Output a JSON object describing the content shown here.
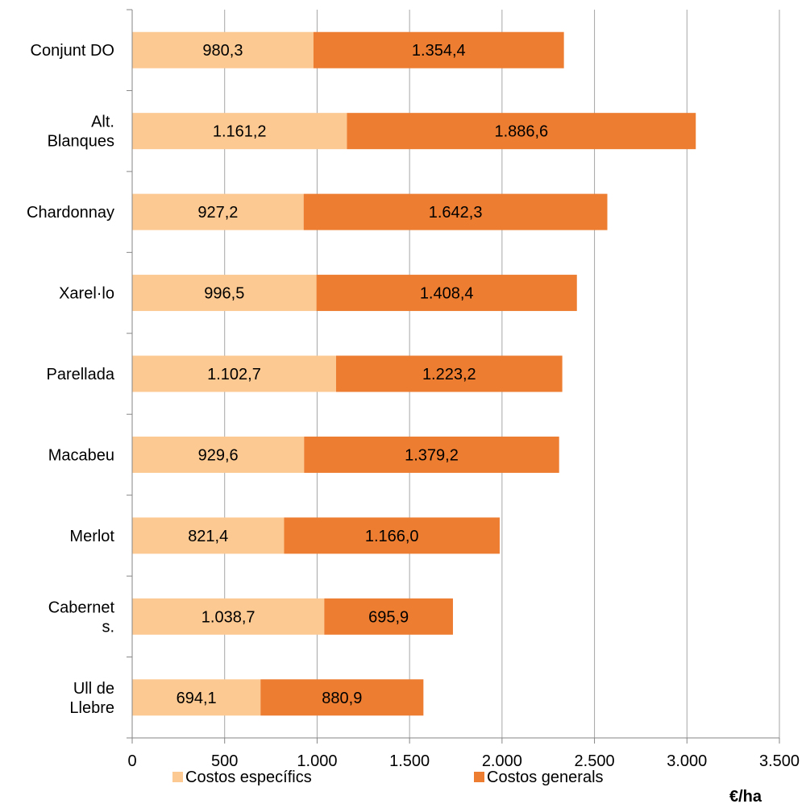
{
  "chart_data": {
    "type": "bar",
    "orientation": "horizontal",
    "stacked": true,
    "categories": [
      [
        "Conjunt DO"
      ],
      [
        "Alt.",
        "Blanques"
      ],
      [
        "Chardonnay"
      ],
      [
        "Xarel·lo"
      ],
      [
        "Parellada"
      ],
      [
        "Macabeu"
      ],
      [
        "Merlot"
      ],
      [
        "Cabernet",
        "s."
      ],
      [
        "Ull de",
        "Llebre"
      ]
    ],
    "series": [
      {
        "name": "Costos específics",
        "color": "#FCC992",
        "values": [
          980.3,
          1161.2,
          927.2,
          996.5,
          1102.7,
          929.6,
          821.4,
          1038.7,
          694.1
        ],
        "labels": [
          "980,3",
          "1.161,2",
          "927,2",
          "996,5",
          "1.102,7",
          "929,6",
          "821,4",
          "1.038,7",
          "694,1"
        ]
      },
      {
        "name": "Costos generals",
        "color": "#ED7D31",
        "values": [
          1354.4,
          1886.6,
          1642.3,
          1408.4,
          1223.2,
          1379.2,
          1166.0,
          695.9,
          880.9
        ],
        "labels": [
          "1.354,4",
          "1.886,6",
          "1.642,3",
          "1.408,4",
          "1.223,2",
          "1.379,2",
          "1.166,0",
          "695,9",
          "880,9"
        ]
      }
    ],
    "xlim": [
      0,
      3500
    ],
    "xticks": [
      0,
      500,
      1000,
      1500,
      2000,
      2500,
      3000,
      3500
    ],
    "xtick_labels": [
      "0",
      "500",
      "1.000",
      "1.500",
      "2.000",
      "2.500",
      "3.000",
      "3.500"
    ],
    "unit": "€/ha",
    "grid": "vertical",
    "legend": "bottom"
  }
}
